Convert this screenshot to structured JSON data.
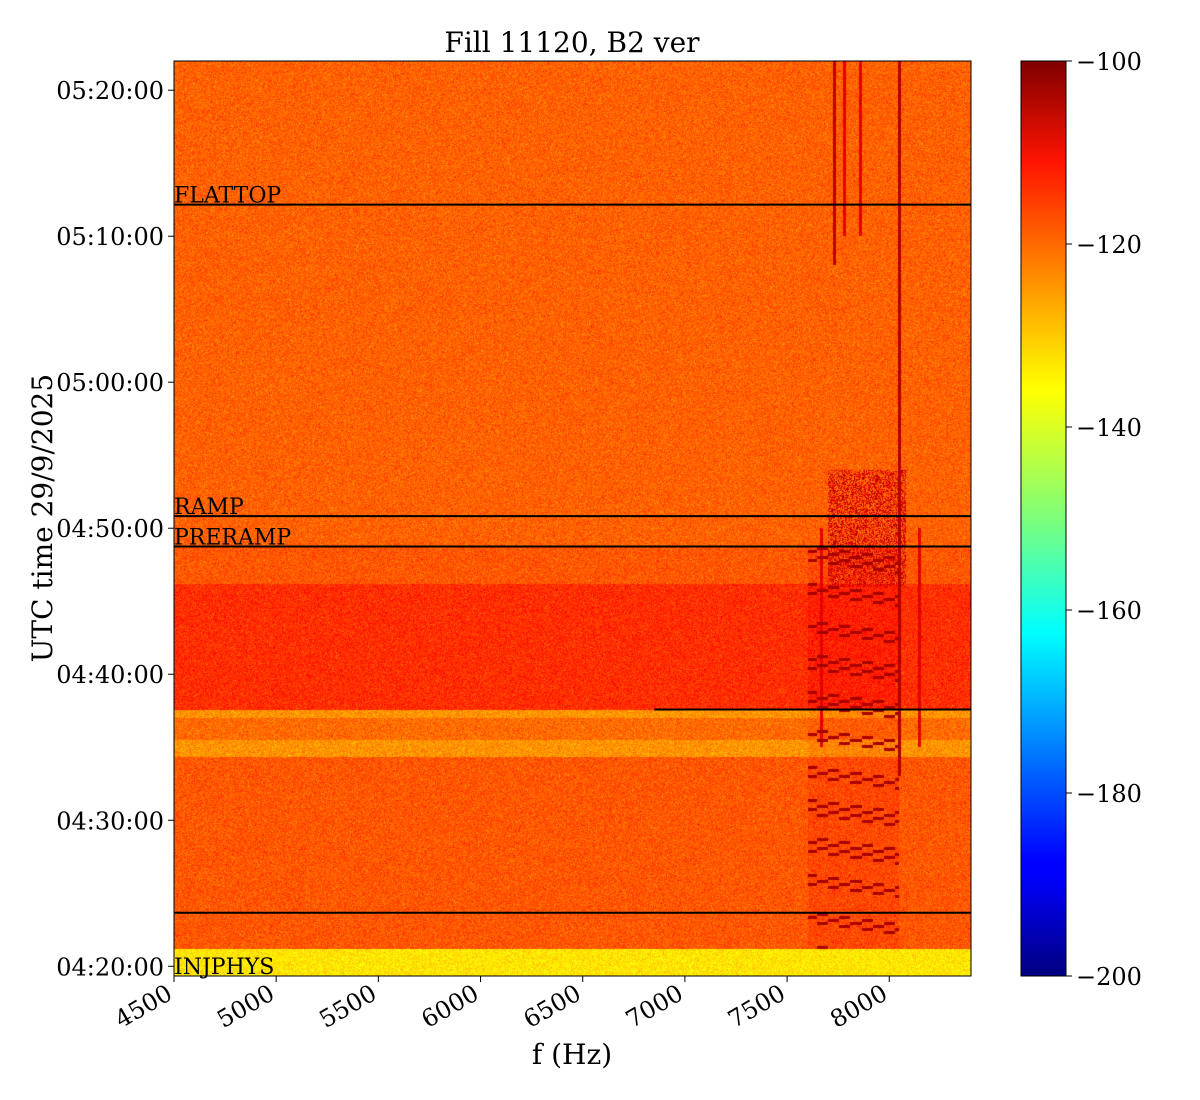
{
  "chart_data": {
    "type": "heatmap",
    "title": "Fill 11120, B2 ver",
    "xlabel": "f (Hz)",
    "ylabel": "UTC time 29/9/2025",
    "xlim": [
      4500,
      8400
    ],
    "ylim_seconds_since_midnight": [
      15560,
      19320
    ],
    "x_ticks": [
      {
        "value": 4500,
        "label": "4500"
      },
      {
        "value": 5000,
        "label": "5000"
      },
      {
        "value": 5500,
        "label": "5500"
      },
      {
        "value": 6000,
        "label": "6000"
      },
      {
        "value": 6500,
        "label": "6500"
      },
      {
        "value": 7000,
        "label": "7000"
      },
      {
        "value": 7500,
        "label": "7500"
      },
      {
        "value": 8000,
        "label": "8000"
      }
    ],
    "y_ticks": [
      {
        "label": "04:20:00"
      },
      {
        "label": "04:30:00"
      },
      {
        "label": "04:40:00"
      },
      {
        "label": "05:00:00"
      },
      {
        "label": "04:50:00"
      },
      {
        "label": "05:10:00"
      },
      {
        "label": "05:20:00"
      }
    ],
    "colorbar": {
      "colormap": "jet",
      "min": -200,
      "max": -100,
      "ticks": [
        {
          "value": -100,
          "label": "−100"
        },
        {
          "value": -120,
          "label": "−120"
        },
        {
          "value": -140,
          "label": "−140"
        },
        {
          "value": -160,
          "label": "−160"
        },
        {
          "value": -180,
          "label": "−180"
        },
        {
          "value": -200,
          "label": "−200"
        }
      ]
    },
    "markers": [
      {
        "label": "FLATTOP",
        "time": "05:12:10",
        "show_label": true
      },
      {
        "label": "RAMP",
        "time": "04:50:50",
        "show_label": true
      },
      {
        "label": "PRERAMP",
        "time": "04:48:45",
        "show_label": true
      },
      {
        "label": "",
        "time": "04:37:35",
        "show_label": false,
        "from_freq": 6850
      },
      {
        "label": "",
        "time": "04:23:40",
        "show_label": false
      },
      {
        "label": "INJPHYS",
        "time": "04:19:20",
        "show_label": true
      }
    ],
    "background_levels": [
      {
        "from": "04:19:20",
        "to": "04:21:10",
        "level": -135
      },
      {
        "from": "04:21:10",
        "to": "04:34:20",
        "level": -121
      },
      {
        "from": "04:34:20",
        "to": "04:35:30",
        "level": -127
      },
      {
        "from": "04:35:30",
        "to": "04:37:00",
        "level": -123
      },
      {
        "from": "04:37:00",
        "to": "04:37:35",
        "level": -127
      },
      {
        "from": "04:37:35",
        "to": "04:46:10",
        "level": -117
      },
      {
        "from": "04:46:10",
        "to": "04:48:45",
        "level": -121
      },
      {
        "from": "04:48:45",
        "to": "05:22:00",
        "level": -122
      }
    ],
    "features": [
      {
        "kind": "dashed_band",
        "freq_from": 7600,
        "freq_to": 8050,
        "time_from": "04:21:10",
        "time_to": "04:48:45",
        "level": -104
      },
      {
        "kind": "hot_region",
        "freq_from": 7700,
        "freq_to": 8080,
        "time_from": "04:46:00",
        "time_to": "04:54:00",
        "level": -108
      },
      {
        "kind": "vertical_line",
        "freq": 8050,
        "time_from": "04:33:00",
        "time_to": "05:22:00",
        "level": -105
      },
      {
        "kind": "vertical_line",
        "freq": 7730,
        "time_from": "05:08:00",
        "time_to": "05:22:00",
        "level": -106
      },
      {
        "kind": "vertical_line",
        "freq": 7780,
        "time_from": "05:10:00",
        "time_to": "05:22:00",
        "level": -110
      },
      {
        "kind": "vertical_line",
        "freq": 7860,
        "time_from": "05:10:00",
        "time_to": "05:22:00",
        "level": -110
      },
      {
        "kind": "vertical_line",
        "freq": 7670,
        "time_from": "04:35:00",
        "time_to": "04:50:00",
        "level": -110
      },
      {
        "kind": "vertical_line",
        "freq": 8150,
        "time_from": "04:35:00",
        "time_to": "04:50:00",
        "level": -110
      }
    ]
  }
}
